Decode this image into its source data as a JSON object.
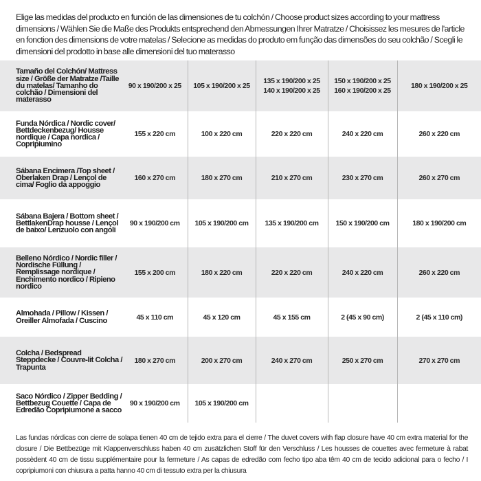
{
  "intro": "Elige las medidas del producto en función de las dimensiones de tu colchón / Choose product sizes according to your mattress dimensions / Wählen Sie die Maße des Produkts entsprechend den Abmessungen Ihrer Matratze / Choisissez les mesures de l'article en fonction des dimensions de votre matelas / Selecione as medidas do produto em função das dimensões do seu colchão / Scegli le dimensioni del prodotto in base alle dimensioni del tuo materasso",
  "table": {
    "header": {
      "label": "Tamaño del Colchón/ Mattress size / Größe der Matratze /Taille du matelas/ Tamanho do colchão / Dimensioni del materasso",
      "sizes": [
        [
          "90 x 190/200 x 25"
        ],
        [
          "105 x 190/200 x 25"
        ],
        [
          "135 x 190/200 x 25",
          "140 x 190/200 x 25"
        ],
        [
          "150 x 190/200 x 25",
          "160 x 190/200 x 25"
        ],
        [
          "180 x 190/200 x 25"
        ]
      ]
    },
    "rows": [
      {
        "label": "Funda Nórdica /  Nordic cover/ Bettdeckenbezug/ Housse nordique  / Capa nordica / Copripiumino",
        "values": [
          "155 x 220 cm",
          "100 x 220 cm",
          "220 x 220 cm",
          "240 x 220 cm",
          "260 x 220 cm"
        ]
      },
      {
        "label": "Sábana Encimera /Top sheet / Oberlaken Drap / Lençol de cima/ Foglio da appoggio",
        "values": [
          "160 x 270 cm",
          "180 x 270 cm",
          "210 x 270 cm",
          "230 x 270 cm",
          "260 x 270 cm"
        ]
      },
      {
        "label": "Sábana Bajera / Bottom sheet / BettlakenDrap housse / Lençol de baixo/ Lenzuolo con angoli",
        "values": [
          "90 x 190/200 cm",
          "105 x 190/200 cm",
          "135 x 190/200 cm",
          "150 x 190/200 cm",
          "180 x 190/200 cm"
        ]
      },
      {
        "label": "Belleno Nórdico / Nordic filler / Nordische Füllung / Remplissage nordique / Enchimento nordico / Ripieno nordico",
        "values": [
          "155 x 200 cm",
          "180 x 220 cm",
          "220 x 220 cm",
          "240 x 220 cm",
          "260 x 220 cm"
        ]
      },
      {
        "label": "Almohada  / Pillow / Kissen / Oreiller Almofada / Cuscino",
        "values": [
          "45 x 110 cm",
          "45 x 120 cm",
          "45 x 155 cm",
          "2 (45 x 90 cm)",
          "2 (45 x 110 cm)"
        ]
      },
      {
        "label": "Colcha / Bedspread Steppdecke / Couvre-lit Colcha / Trapunta",
        "values": [
          "180 x 270 cm",
          "200 x 270 cm",
          "240 x 270 cm",
          "250 x 270 cm",
          "270 x 270 cm"
        ]
      },
      {
        "label": "Saco Nórdico / Zipper Bedding / Bettbezug Couette  / Capa de Edredão Copripiumone a sacco",
        "values": [
          "90 x 190/200 cm",
          "105 x 190/200 cm",
          "",
          "",
          ""
        ]
      }
    ]
  },
  "footnote": "Las fundas nórdicas con cierre de solapa tienen 40 cm de tejido extra para el cierre  / The duvet covers with flap closure have 40 cm extra material for the closure / Die Bettbezüge mit Klappenverschluss haben 40 cm zusätzlichen Stoff für den Verschluss / Les housses de couettes avec fermeture à rabat possèdent 40 cm de tissu supplémentaire pour la fermeture / As capas de edredão com fecho tipo aba têm 40 cm de tecido adicional para o fecho / I copripiumoni con chiusura a patta hanno 40 cm di tessuto extra per la chiusura"
}
